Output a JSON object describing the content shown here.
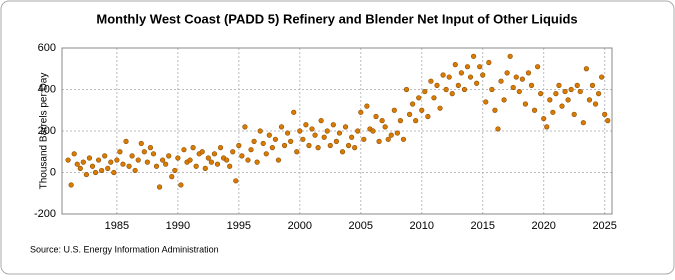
{
  "chart_data": {
    "type": "scatter",
    "title": "Monthly West Coast (PADD 5) Refinery and Blender Net Input of Other Liquids",
    "y_label": "Thousand Barrels per Day",
    "source": "Source: U.S. Energy Information Administration",
    "color": "#d97b00",
    "grid": true,
    "xlim": [
      1980.5,
      2025.6
    ],
    "ylim": [
      -200,
      600
    ],
    "xticks": [
      1985,
      1990,
      1995,
      2000,
      2005,
      2010,
      2015,
      2020,
      2025
    ],
    "yticks": [
      -200,
      0,
      200,
      400,
      600
    ],
    "x": [
      1981,
      1981.25,
      1981.5,
      1981.75,
      1982,
      1982.25,
      1982.5,
      1982.75,
      1983,
      1983.25,
      1983.5,
      1983.75,
      1984,
      1984.25,
      1984.5,
      1984.75,
      1985,
      1985.25,
      1985.5,
      1985.75,
      1986,
      1986.25,
      1986.5,
      1986.75,
      1987,
      1987.25,
      1987.5,
      1987.75,
      1988,
      1988.25,
      1988.5,
      1988.75,
      1989,
      1989.25,
      1989.5,
      1989.75,
      1990,
      1990.25,
      1990.5,
      1990.75,
      1991,
      1991.25,
      1991.5,
      1991.75,
      1992,
      1992.25,
      1992.5,
      1992.75,
      1993,
      1993.25,
      1993.5,
      1993.75,
      1994,
      1994.25,
      1994.5,
      1994.75,
      1995,
      1995.25,
      1995.5,
      1995.75,
      1996,
      1996.25,
      1996.5,
      1996.75,
      1997,
      1997.25,
      1997.5,
      1997.75,
      1998,
      1998.25,
      1998.5,
      1998.75,
      1999,
      1999.25,
      1999.5,
      1999.75,
      2000,
      2000.25,
      2000.5,
      2000.75,
      2001,
      2001.25,
      2001.5,
      2001.75,
      2002,
      2002.25,
      2002.5,
      2002.75,
      2003,
      2003.25,
      2003.5,
      2003.75,
      2004,
      2004.25,
      2004.5,
      2004.75,
      2005,
      2005.25,
      2005.5,
      2005.75,
      2006,
      2006.25,
      2006.5,
      2006.75,
      2007,
      2007.25,
      2007.5,
      2007.75,
      2008,
      2008.25,
      2008.5,
      2008.75,
      2009,
      2009.25,
      2009.5,
      2009.75,
      2010,
      2010.25,
      2010.5,
      2010.75,
      2011,
      2011.25,
      2011.5,
      2011.75,
      2012,
      2012.25,
      2012.5,
      2012.75,
      2013,
      2013.25,
      2013.5,
      2013.75,
      2014,
      2014.25,
      2014.5,
      2014.75,
      2015,
      2015.25,
      2015.5,
      2015.75,
      2016,
      2016.25,
      2016.5,
      2016.75,
      2017,
      2017.25,
      2017.5,
      2017.75,
      2018,
      2018.25,
      2018.5,
      2018.75,
      2019,
      2019.25,
      2019.5,
      2019.75,
      2020,
      2020.25,
      2020.5,
      2020.75,
      2021,
      2021.25,
      2021.5,
      2021.75,
      2022,
      2022.25,
      2022.5,
      2022.75,
      2023,
      2023.25,
      2023.5,
      2023.75,
      2024,
      2024.25,
      2024.5,
      2024.75,
      2025,
      2025.25
    ],
    "values": [
      60,
      -60,
      90,
      40,
      20,
      50,
      -10,
      70,
      30,
      0,
      60,
      10,
      80,
      20,
      50,
      0,
      60,
      100,
      40,
      150,
      30,
      80,
      10,
      60,
      140,
      100,
      50,
      120,
      90,
      30,
      -70,
      60,
      40,
      80,
      -20,
      10,
      70,
      -60,
      110,
      50,
      60,
      120,
      30,
      90,
      100,
      20,
      70,
      50,
      90,
      40,
      120,
      70,
      60,
      30,
      100,
      -40,
      130,
      80,
      220,
      60,
      110,
      150,
      50,
      200,
      140,
      90,
      180,
      120,
      160,
      60,
      220,
      130,
      190,
      150,
      290,
      100,
      200,
      160,
      230,
      130,
      210,
      180,
      120,
      250,
      170,
      200,
      130,
      230,
      150,
      190,
      100,
      220,
      130,
      170,
      120,
      200,
      290,
      160,
      320,
      210,
      200,
      270,
      150,
      250,
      220,
      160,
      180,
      300,
      190,
      250,
      160,
      400,
      280,
      330,
      250,
      360,
      300,
      390,
      270,
      440,
      360,
      420,
      310,
      470,
      400,
      460,
      380,
      520,
      420,
      480,
      400,
      510,
      460,
      560,
      430,
      510,
      470,
      340,
      530,
      400,
      300,
      210,
      440,
      350,
      480,
      560,
      410,
      460,
      390,
      450,
      330,
      480,
      420,
      300,
      510,
      380,
      260,
      220,
      350,
      290,
      380,
      420,
      320,
      390,
      350,
      400,
      280,
      420,
      390,
      240,
      500,
      350,
      420,
      330,
      380,
      460,
      280,
      250
    ]
  }
}
